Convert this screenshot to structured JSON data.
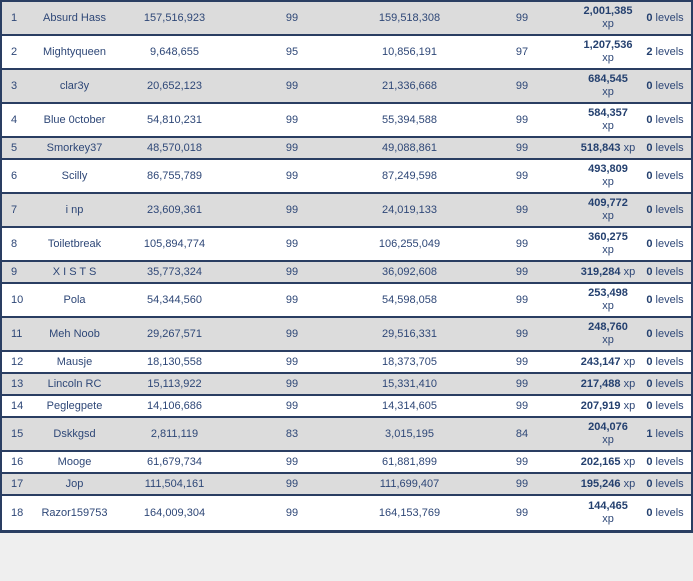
{
  "colors": {
    "border": "#2a3e62",
    "row_alt_bg": "#dcdcdc",
    "row_bg": "#ffffff",
    "text": "#2e4777",
    "bold_text": "#24406f",
    "page_bg": "#efefef"
  },
  "table": {
    "columns": [
      "rank",
      "name",
      "xp_start",
      "level_start",
      "xp_end",
      "level_end",
      "xp_gained",
      "levels_gained"
    ],
    "xp_unit": "xp",
    "levels_unit": "levels",
    "rows": [
      {
        "rank": "1",
        "name": "Absurd Hass",
        "xp_start": "157,516,923",
        "level_start": "99",
        "xp_end": "159,518,308",
        "level_end": "99",
        "xp_gained": "2,001,385",
        "xp_two_lines": true,
        "levels_gained": "0"
      },
      {
        "rank": "2",
        "name": "Mightyqueen",
        "xp_start": "9,648,655",
        "level_start": "95",
        "xp_end": "10,856,191",
        "level_end": "97",
        "xp_gained": "1,207,536",
        "xp_two_lines": true,
        "levels_gained": "2"
      },
      {
        "rank": "3",
        "name": "clar3y",
        "xp_start": "20,652,123",
        "level_start": "99",
        "xp_end": "21,336,668",
        "level_end": "99",
        "xp_gained": "684,545",
        "xp_two_lines": true,
        "levels_gained": "0"
      },
      {
        "rank": "4",
        "name": "Blue 0ctober",
        "xp_start": "54,810,231",
        "level_start": "99",
        "xp_end": "55,394,588",
        "level_end": "99",
        "xp_gained": "584,357",
        "xp_two_lines": true,
        "levels_gained": "0"
      },
      {
        "rank": "5",
        "name": "Smorkey37",
        "xp_start": "48,570,018",
        "level_start": "99",
        "xp_end": "49,088,861",
        "level_end": "99",
        "xp_gained": "518,843",
        "xp_two_lines": false,
        "levels_gained": "0"
      },
      {
        "rank": "6",
        "name": "Scilly",
        "xp_start": "86,755,789",
        "level_start": "99",
        "xp_end": "87,249,598",
        "level_end": "99",
        "xp_gained": "493,809",
        "xp_two_lines": true,
        "levels_gained": "0"
      },
      {
        "rank": "7",
        "name": "i np",
        "xp_start": "23,609,361",
        "level_start": "99",
        "xp_end": "24,019,133",
        "level_end": "99",
        "xp_gained": "409,772",
        "xp_two_lines": true,
        "levels_gained": "0"
      },
      {
        "rank": "8",
        "name": "Toiletbreak",
        "xp_start": "105,894,774",
        "level_start": "99",
        "xp_end": "106,255,049",
        "level_end": "99",
        "xp_gained": "360,275",
        "xp_two_lines": true,
        "levels_gained": "0"
      },
      {
        "rank": "9",
        "name": "X I S T S",
        "xp_start": "35,773,324",
        "level_start": "99",
        "xp_end": "36,092,608",
        "level_end": "99",
        "xp_gained": "319,284",
        "xp_two_lines": false,
        "levels_gained": "0"
      },
      {
        "rank": "10",
        "name": "Pola",
        "xp_start": "54,344,560",
        "level_start": "99",
        "xp_end": "54,598,058",
        "level_end": "99",
        "xp_gained": "253,498",
        "xp_two_lines": true,
        "levels_gained": "0"
      },
      {
        "rank": "11",
        "name": "Meh Noob",
        "xp_start": "29,267,571",
        "level_start": "99",
        "xp_end": "29,516,331",
        "level_end": "99",
        "xp_gained": "248,760",
        "xp_two_lines": true,
        "levels_gained": "0"
      },
      {
        "rank": "12",
        "name": "Mausje",
        "xp_start": "18,130,558",
        "level_start": "99",
        "xp_end": "18,373,705",
        "level_end": "99",
        "xp_gained": "243,147",
        "xp_two_lines": false,
        "levels_gained": "0"
      },
      {
        "rank": "13",
        "name": "Lincoln RC",
        "xp_start": "15,113,922",
        "level_start": "99",
        "xp_end": "15,331,410",
        "level_end": "99",
        "xp_gained": "217,488",
        "xp_two_lines": false,
        "levels_gained": "0"
      },
      {
        "rank": "14",
        "name": "Peglegpete",
        "xp_start": "14,106,686",
        "level_start": "99",
        "xp_end": "14,314,605",
        "level_end": "99",
        "xp_gained": "207,919",
        "xp_two_lines": false,
        "levels_gained": "0"
      },
      {
        "rank": "15",
        "name": "Dskkgsd",
        "xp_start": "2,811,119",
        "level_start": "83",
        "xp_end": "3,015,195",
        "level_end": "84",
        "xp_gained": "204,076",
        "xp_two_lines": true,
        "levels_gained": "1"
      },
      {
        "rank": "16",
        "name": "Mooge",
        "xp_start": "61,679,734",
        "level_start": "99",
        "xp_end": "61,881,899",
        "level_end": "99",
        "xp_gained": "202,165",
        "xp_two_lines": false,
        "levels_gained": "0"
      },
      {
        "rank": "17",
        "name": "Jop",
        "xp_start": "111,504,161",
        "level_start": "99",
        "xp_end": "111,699,407",
        "level_end": "99",
        "xp_gained": "195,246",
        "xp_two_lines": false,
        "levels_gained": "0"
      },
      {
        "rank": "18",
        "name": "Razor159753",
        "xp_start": "164,009,304",
        "level_start": "99",
        "xp_end": "164,153,769",
        "level_end": "99",
        "xp_gained": "144,465",
        "xp_two_lines": true,
        "levels_gained": "0"
      }
    ]
  }
}
